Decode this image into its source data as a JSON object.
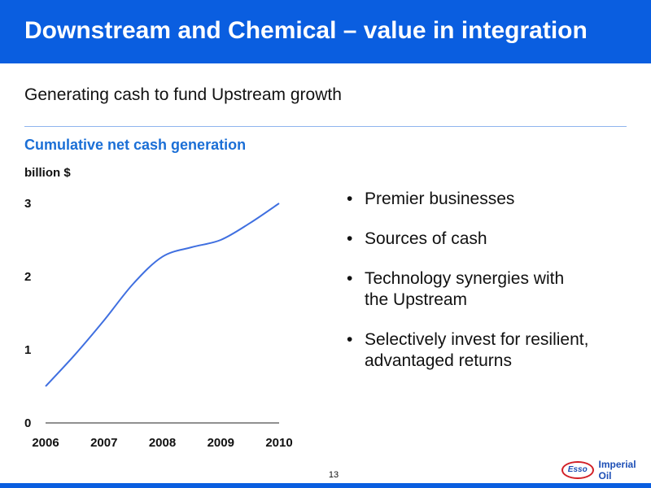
{
  "header": {
    "title": "Downstream and Chemical – value in integration"
  },
  "subtitle": "Generating cash to fund Upstream growth",
  "chart_data": {
    "type": "line",
    "title": "Cumulative net cash generation",
    "ylabel": "billion $",
    "xlabel": "",
    "x": [
      2006,
      2006.5,
      2007,
      2007.5,
      2008,
      2008.5,
      2009,
      2009.5,
      2010
    ],
    "x_ticks": [
      "2006",
      "2007",
      "2008",
      "2009",
      "2010"
    ],
    "y_ticks": [
      "0",
      "1",
      "2",
      "3"
    ],
    "ylim": [
      0,
      3
    ],
    "xlim": [
      2006,
      2010
    ],
    "grid": false,
    "series": [
      {
        "values": [
          0.5,
          0.93,
          1.4,
          1.9,
          2.27,
          2.4,
          2.5,
          2.73,
          3.0
        ],
        "color": "#3f6fe0"
      }
    ]
  },
  "bullets": [
    {
      "line1": "Premier businesses",
      "line2": ""
    },
    {
      "line1": "Sources of cash",
      "line2": ""
    },
    {
      "line1": "Technology synergies with",
      "line2": "the Upstream"
    },
    {
      "line1": "Selectively invest for resilient,",
      "line2": "advantaged returns"
    }
  ],
  "bullet_glyph": "•",
  "footer": {
    "page_number": "13",
    "logo_mark": "Esso",
    "company": "Imperial Oil"
  },
  "colors": {
    "header_bg": "#0a5ee0",
    "chart_title": "#1b6fd6",
    "line": "#3f6fe0"
  }
}
